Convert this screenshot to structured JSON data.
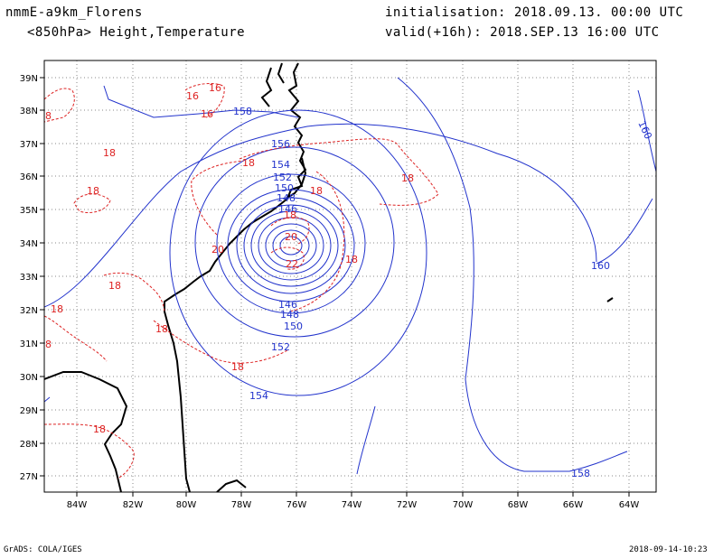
{
  "header": {
    "model": "nmmE-a9km_Florens",
    "init": "initialisation: 2018.09.13. 00:00 UTC",
    "field": "<850hPa> Height,Temperature",
    "valid": "valid(+16h): 2018.SEP.13 16:00 UTC"
  },
  "footer": {
    "left": "GrADS: COLA/IGES",
    "right": "2018-09-14-10:23"
  },
  "axes": {
    "lon_ticks": [
      "84W",
      "82W",
      "80W",
      "78W",
      "76W",
      "74W",
      "72W",
      "70W",
      "68W",
      "66W",
      "64W"
    ],
    "lat_ticks": [
      "39N",
      "38N",
      "37N",
      "36N",
      "35N",
      "34N",
      "33N",
      "32N",
      "31N",
      "30N",
      "29N",
      "28N",
      "27N"
    ]
  },
  "colors": {
    "height": "#2233cc",
    "temperature": "#dd2222",
    "coast": "#000000",
    "grid": "#888888"
  },
  "height_labels": [
    "158",
    "156",
    "154",
    "152",
    "150",
    "148",
    "146",
    "146",
    "148",
    "150",
    "152",
    "154",
    "158",
    "160",
    "160"
  ],
  "temp_labels": [
    "16",
    "16",
    "16",
    "18",
    "18",
    "18",
    "18",
    "18",
    "18",
    "18",
    "18",
    "18",
    "18",
    "18",
    "18",
    "20",
    "20",
    "22",
    "8",
    "8"
  ]
}
